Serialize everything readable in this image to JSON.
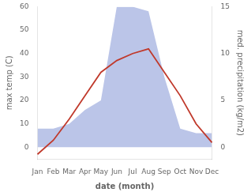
{
  "chart_data": {
    "type": "line",
    "categories": [
      "Jan",
      "Feb",
      "Mar",
      "Apr",
      "May",
      "Jun",
      "Jul",
      "Aug",
      "Sep",
      "Oct",
      "Nov",
      "Dec"
    ],
    "xlabel": "date (month)",
    "ylabel": "max temp (C)",
    "y2label": "med. precipitation (kg/m2)",
    "series": [
      {
        "type": "area",
        "axis": "y2",
        "color": "#bbc5e8",
        "values": [
          2,
          2,
          2.5,
          4,
          5,
          15,
          15,
          14.5,
          7.5,
          2,
          1.5,
          1.5
        ]
      },
      {
        "type": "line",
        "color": "#c0392b",
        "values": [
          -3,
          3,
          12,
          22,
          32,
          37,
          40,
          42,
          32,
          22,
          10,
          2
        ]
      }
    ],
    "ylim": [
      -5,
      60
    ],
    "yticks": [
      0,
      10,
      20,
      30,
      40,
      50,
      60
    ],
    "y2lim": [
      -1.25,
      15
    ],
    "y2ticks": [
      0,
      5,
      10,
      15
    ],
    "grid": false
  }
}
